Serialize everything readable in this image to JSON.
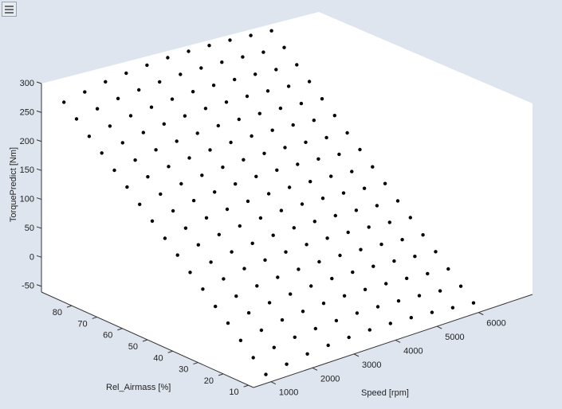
{
  "toolbar": {
    "menu_icon": "hamburger-menu-icon"
  },
  "chart_data": {
    "type": "scatter3d",
    "xlabel": "Speed [rpm]",
    "ylabel": "Rel_Airmass [%]",
    "zlabel": "TorquePredict [Nm]",
    "xlim": [
      580,
      7300
    ],
    "ylim": [
      8,
      92
    ],
    "zlim": [
      -60,
      300
    ],
    "xticks": [
      1000,
      2000,
      3000,
      4000,
      5000,
      6000
    ],
    "yticks": [
      10,
      20,
      30,
      40,
      50,
      60,
      70,
      80
    ],
    "zticks": [
      -50,
      0,
      50,
      100,
      150,
      200,
      250,
      300
    ],
    "marker_color": "#000000",
    "speed": [
      1000,
      1500,
      2000,
      2500,
      3000,
      3500,
      4000,
      4500,
      5000,
      5500,
      6000
    ],
    "airmass": [
      10,
      15,
      20,
      25,
      30,
      35,
      40,
      45,
      50,
      55,
      60,
      65,
      70,
      75,
      80,
      85,
      90
    ],
    "torque": [
      [
        -51,
        -31,
        -10,
        11,
        31,
        52,
        72,
        93,
        113,
        134,
        154,
        175,
        195,
        216,
        236,
        257,
        277
      ],
      [
        -45,
        -25,
        -4,
        17,
        37,
        58,
        78,
        99,
        119,
        140,
        160,
        181,
        201,
        222,
        242,
        263,
        283
      ],
      [
        -39,
        -19,
        2,
        23,
        43,
        64,
        84,
        105,
        125,
        146,
        166,
        187,
        207,
        228,
        248,
        269,
        289
      ],
      [
        -36,
        -16,
        5,
        26,
        46,
        67,
        87,
        108,
        128,
        149,
        169,
        190,
        210,
        231,
        251,
        272,
        292
      ],
      [
        -34,
        -14,
        7,
        28,
        48,
        69,
        89,
        110,
        130,
        151,
        171,
        192,
        212,
        233,
        253,
        274,
        294
      ],
      [
        -33,
        -13,
        8,
        29,
        49,
        70,
        90,
        111,
        131,
        152,
        172,
        193,
        213,
        234,
        254,
        275,
        295
      ],
      [
        -34,
        -14,
        7,
        28,
        48,
        69,
        89,
        110,
        130,
        151,
        171,
        192,
        212,
        233,
        253,
        274,
        294
      ],
      [
        -36,
        -16,
        5,
        26,
        46,
        67,
        87,
        108,
        128,
        149,
        169,
        190,
        210,
        231,
        251,
        272,
        292
      ],
      [
        -39,
        -19,
        2,
        23,
        43,
        64,
        84,
        105,
        125,
        146,
        166,
        187,
        207,
        228,
        248,
        269,
        289
      ],
      [
        -43,
        -23,
        -2,
        19,
        39,
        60,
        80,
        101,
        121,
        142,
        162,
        183,
        203,
        224,
        244,
        265,
        285
      ],
      [
        -47,
        -27,
        -6,
        15,
        35,
        56,
        76,
        97,
        117,
        138,
        158,
        179,
        199,
        220,
        240,
        261,
        281
      ]
    ]
  }
}
